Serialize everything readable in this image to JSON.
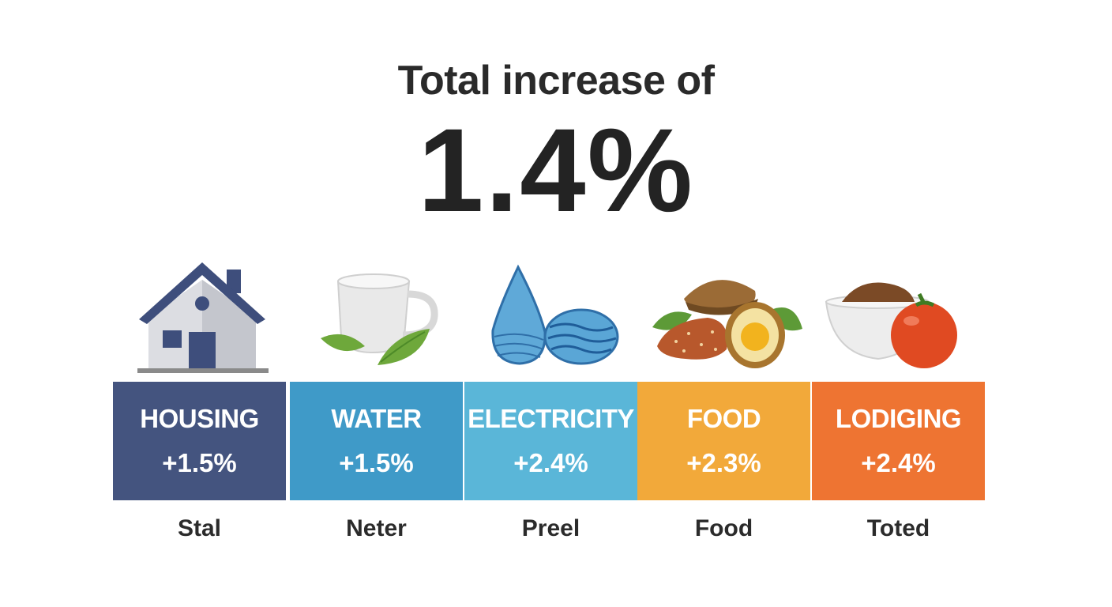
{
  "headline": "Total increase of",
  "total_value": "1.4%",
  "categories": [
    {
      "name": "HOUSING",
      "value": "+1.5%",
      "caption": "Stal",
      "color": "#44547f",
      "icon": "house-icon"
    },
    {
      "name": "WATER",
      "value": "+1.5%",
      "caption": "Neter",
      "color": "#3f9ac8",
      "icon": "cup-icon"
    },
    {
      "name": "ELECTRICITY",
      "value": "+2.4%",
      "caption": "Preel",
      "color": "#5ab6d8",
      "icon": "water-drop-icon"
    },
    {
      "name": "FOOD",
      "value": "+2.3%",
      "caption": "Food",
      "color": "#f2a93a",
      "icon": "food-icon"
    },
    {
      "name": "LODIGING",
      "value": "+2.4%",
      "caption": "Toted",
      "color": "#ee7432",
      "icon": "bowl-tomato-icon"
    }
  ]
}
